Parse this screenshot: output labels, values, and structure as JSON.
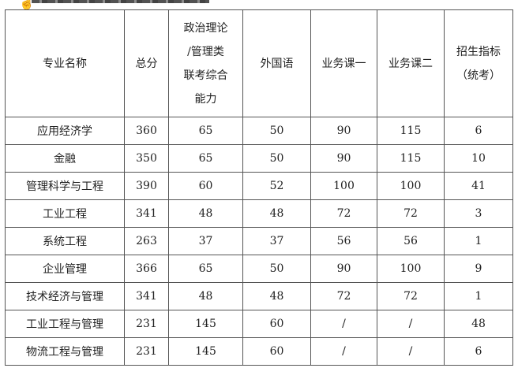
{
  "cursor_icon": "hand-pointer-icon",
  "table": {
    "headers": [
      "专业名称",
      "总分",
      "政治理论/管理类联考综合能力",
      "外国语",
      "业务课一",
      "业务课二",
      "招生指标（统考）"
    ],
    "header_lines": [
      [
        "专业名称"
      ],
      [
        "总分"
      ],
      [
        "政治理论",
        "/管理类",
        "联考综合",
        "能力"
      ],
      [
        "外国语"
      ],
      [
        "业务课一"
      ],
      [
        "业务课二"
      ],
      [
        "招生指标",
        "（统考）"
      ]
    ],
    "rows": [
      [
        "应用经济学",
        "360",
        "65",
        "50",
        "90",
        "115",
        "6"
      ],
      [
        "金融",
        "350",
        "65",
        "50",
        "90",
        "115",
        "10"
      ],
      [
        "管理科学与工程",
        "390",
        "60",
        "52",
        "100",
        "100",
        "41"
      ],
      [
        "工业工程",
        "341",
        "48",
        "48",
        "72",
        "72",
        "3"
      ],
      [
        "系统工程",
        "263",
        "37",
        "37",
        "56",
        "56",
        "1"
      ],
      [
        "企业管理",
        "366",
        "65",
        "50",
        "90",
        "100",
        "9"
      ],
      [
        "技术经济与管理",
        "341",
        "48",
        "48",
        "72",
        "72",
        "1"
      ],
      [
        "工业工程与管理",
        "231",
        "145",
        "60",
        "/",
        "/",
        "48"
      ],
      [
        "物流工程与管理",
        "231",
        "145",
        "60",
        "/",
        "/",
        "6"
      ]
    ]
  }
}
